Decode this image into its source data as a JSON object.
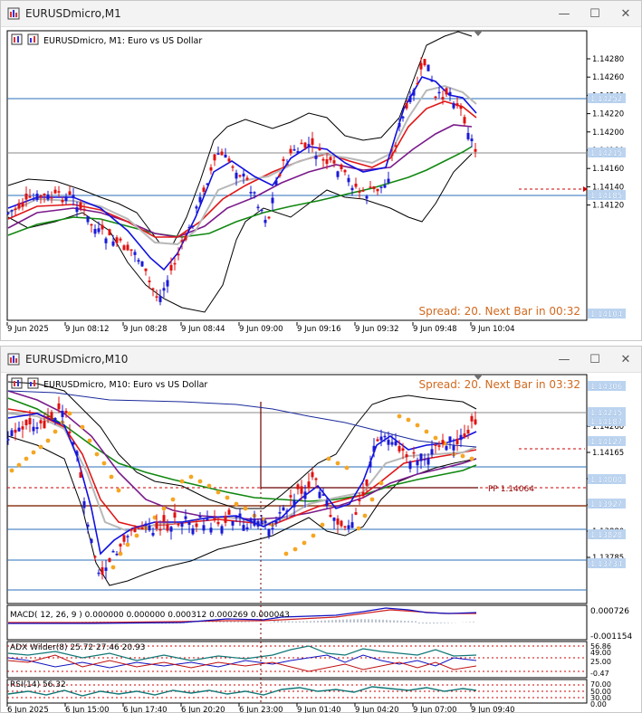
{
  "windows": [
    {
      "title": "EURUSDmicro,M1",
      "chart_label": "EURUSDmicro, M1:  Euro vs US Dollar",
      "spread_text": "Spread: 20. Next Bar in 00:32",
      "price_ticks": [
        "1.14280",
        "1.14260",
        "1.14240",
        "1.14220",
        "1.14200",
        "1.14180",
        "1.14160",
        "1.14140",
        "1.14120"
      ],
      "price_badges": [
        "1.14252",
        "1.14215",
        "1.14185",
        "1.14104"
      ],
      "time_ticks": [
        "9 Jun 2025",
        "9 Jun 08:12",
        "9 Jun 08:28",
        "9 Jun 08:44",
        "9 Jun 09:00",
        "9 Jun 09:16",
        "9 Jun 09:32",
        "9 Jun 09:48",
        "9 Jun 10:04"
      ]
    },
    {
      "title": "EURUSDmicro,M10",
      "chart_label": "EURUSDmicro, M10:  Euro vs US Dollar",
      "spread_text": "Spread: 20. Next Bar in 03:32",
      "price_ticks": [
        "1.14260",
        "1.14165",
        "1.14070",
        "1.13975",
        "1.13880",
        "1.13785"
      ],
      "price_badges": [
        "1.14306",
        "1.14215",
        "1.14187",
        "1.14127",
        "1.14000",
        "1.13927",
        "1.13828",
        "1.13734"
      ],
      "pivot_label": "PP 1.14064",
      "macd_label": "MACD( 12, 26, 9 ) 0.000000  0.000000  0.000312  0.000269  0.000043",
      "macd_ticks": [
        "0.000726",
        "-0.001154"
      ],
      "adx_label": "ADX Wilder(8) 25.72  27.46  20.93",
      "adx_ticks": [
        "56.86",
        "49.00",
        "25.00",
        "-0.47"
      ],
      "rsi_label": "RSI(14) 56.32",
      "rsi_ticks": [
        "70.00",
        "50.00",
        "30.00",
        "0.00"
      ],
      "time_ticks": [
        "6 Jun 2025",
        "6 Jun 15:00",
        "6 Jun 17:40",
        "6 Jun 20:20",
        "6 Jun 23:00",
        "9 Jun 01:40",
        "9 Jun 04:20",
        "9 Jun 07:00",
        "9 Jun 09:40"
      ]
    }
  ],
  "colors": {
    "bull_candle": "#1a1ad6",
    "bear_candle": "#e01010",
    "ma_fast": "#1010e0",
    "ma_mid": "#e01818",
    "ma_slow": "#7a1a8a",
    "ma_long": "#118811",
    "bollinger": "#000000",
    "parabolic_sar": "#f5a623",
    "badge_fill": "#bcd4f0",
    "spread_text": "#d2691e"
  }
}
